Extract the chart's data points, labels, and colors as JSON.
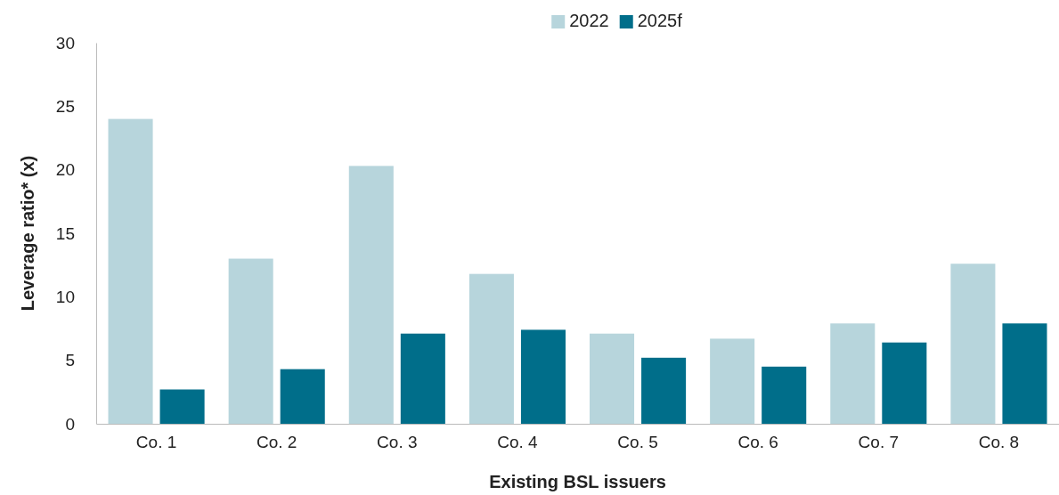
{
  "chart_data": {
    "type": "bar",
    "xlabel": "Existing BSL issuers",
    "ylabel": "Leverage ratio* (x)",
    "categories": [
      "Co. 1",
      "Co. 2",
      "Co. 3",
      "Co. 4",
      "Co. 5",
      "Co. 6",
      "Co. 7",
      "Co. 8"
    ],
    "series": [
      {
        "name": "2022",
        "color": "#b7d5dc",
        "values": [
          24.0,
          13.0,
          20.3,
          11.8,
          7.1,
          6.7,
          7.9,
          12.6
        ]
      },
      {
        "name": "2025f",
        "color": "#006e8a",
        "values": [
          2.7,
          4.3,
          7.1,
          7.4,
          5.2,
          4.5,
          6.4,
          7.9
        ]
      }
    ],
    "ylim": [
      0,
      30
    ],
    "yticks": [
      0,
      5,
      10,
      15,
      20,
      25,
      30
    ],
    "grid": false,
    "legend": "top"
  }
}
